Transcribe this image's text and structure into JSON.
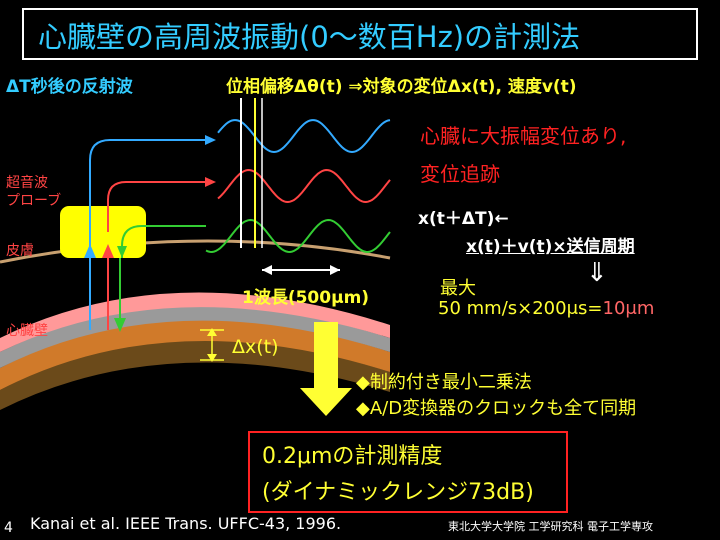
{
  "title": "心臓壁の高周波振動(0〜数百Hz)の計測法",
  "labels": {
    "delay": "ΔT秒後の反射波",
    "phase": "位相偏移Δθ(t)  ⇒対象の変位Δx(t), 速度v(t)",
    "large_disp": "心臓に大振幅変位あり,",
    "tracking": "変位追跡",
    "eq1": "x(t＋ΔT)←",
    "eq2": "x(t)＋v(t)×送信周期",
    "max": "最大",
    "arrow": "⇓",
    "calc_prefix": "50 mm/s×200μs=",
    "calc_result": "10μm",
    "probe_line1": "超音波",
    "probe_line2": "プローブ",
    "skin": "皮膚",
    "heart_wall": "心臓壁",
    "wavelength": "1波長(500μm)",
    "dx": "Δx(t)",
    "bullet1": "◆制約付き最小二乗法",
    "bullet2": "◆A/D変換器のクロックも全て同期",
    "result1": "0.2μmの計測精度",
    "result2": "(ダイナミックレンジ73dB)",
    "reference": "Kanai  et al. IEEE Trans. UFFC-43, 1996.",
    "page_number": "4",
    "affiliation": "東北大学大学院  工学研究科  電子工学専攻"
  },
  "colors": {
    "background": "#000000",
    "title_text": "#33ccff",
    "accent_yellow": "#ffff33",
    "accent_red": "#ff2222",
    "wave_blue": "#33aaff",
    "wave_red": "#ff4444",
    "wave_green": "#33cc33",
    "probe": "#ffff00",
    "heart_wall": "#ff9999"
  }
}
